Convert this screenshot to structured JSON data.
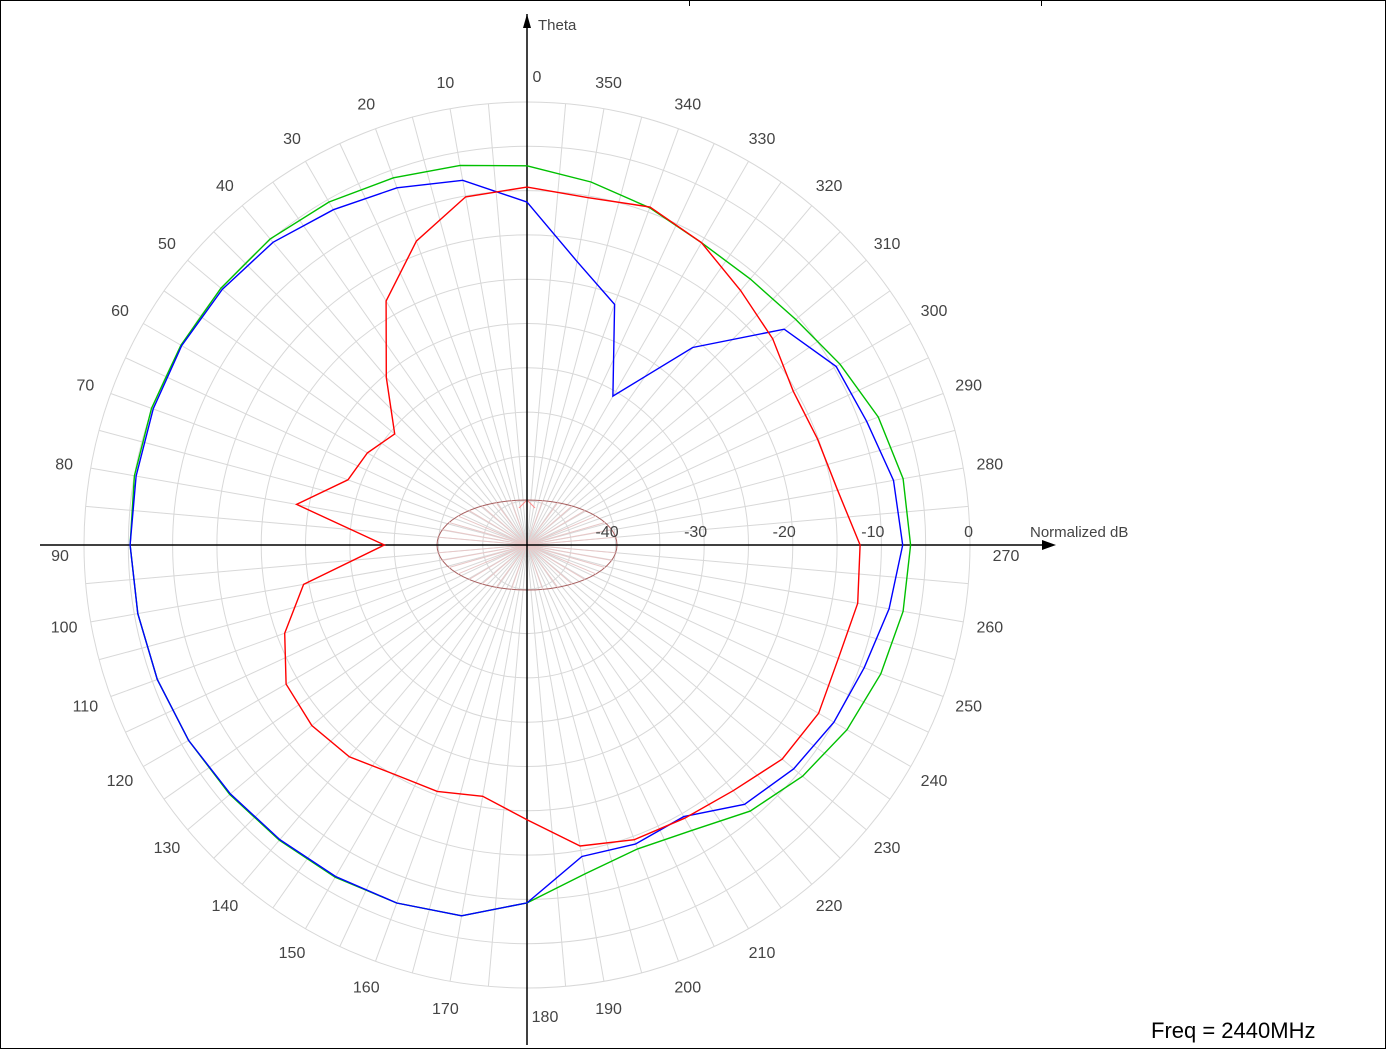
{
  "chart_data": {
    "type": "polar-line",
    "radial_axis": {
      "label": "Normalized dB",
      "range": [
        -50,
        0
      ],
      "ticks": [
        -40,
        -30,
        -20,
        -10,
        0
      ],
      "tick_labels": [
        "-40",
        "-30",
        "-20",
        "-10",
        "0"
      ],
      "rings": [
        -45,
        -40,
        -35,
        -30,
        -25,
        -20,
        -15,
        -10,
        -5,
        0
      ]
    },
    "angular_axis": {
      "label": "Theta",
      "direction": "counterclockwise",
      "zero_at": "top",
      "step_deg": 10,
      "tick_labels": [
        "0",
        "10",
        "20",
        "30",
        "40",
        "50",
        "60",
        "70",
        "80",
        "90",
        "100",
        "110",
        "120",
        "130",
        "140",
        "150",
        "160",
        "170",
        "180",
        "190",
        "200",
        "210",
        "220",
        "230",
        "240",
        "250",
        "260",
        "270",
        "280",
        "290",
        "300",
        "310",
        "320",
        "330",
        "340",
        "350"
      ]
    },
    "theta": [
      0,
      10,
      20,
      30,
      40,
      50,
      60,
      70,
      80,
      90,
      100,
      110,
      120,
      130,
      140,
      150,
      160,
      170,
      180,
      190,
      200,
      210,
      220,
      230,
      240,
      250,
      260,
      270,
      280,
      290,
      300,
      310,
      320,
      330,
      340,
      350
    ],
    "series": [
      {
        "color": "#00c000",
        "values": [
          -7.2,
          -6.5,
          -5.9,
          -5.3,
          -4.9,
          -4.9,
          -4.9,
          -4.9,
          -5.0,
          -5.2,
          -5.4,
          -5.6,
          -5.9,
          -6.2,
          -6.5,
          -6.7,
          -7.0,
          -7.5,
          -9.6,
          -12.3,
          -13.5,
          -12.8,
          -10.8,
          -9.4,
          -8.3,
          -7.5,
          -6.9,
          -6.7,
          -6.9,
          -7.8,
          -9.2,
          -10.4,
          -10.8,
          -10.6,
          -9.5,
          -8.4
        ]
      },
      {
        "color": "#0000ff",
        "values": [
          -11.3,
          -8.2,
          -7.1,
          -6.3,
          -5.4,
          -5.1,
          -5.0,
          -5.1,
          -5.2,
          -5.2,
          -5.4,
          -5.6,
          -5.9,
          -6.3,
          -6.6,
          -6.8,
          -7.0,
          -7.5,
          -9.6,
          -14.3,
          -14.1,
          -14.6,
          -11.8,
          -10.7,
          -10.0,
          -9.5,
          -8.5,
          -7.6,
          -8.0,
          -9.2,
          -9.7,
          -12.1,
          -20.9,
          -30.6,
          -21.1,
          -17.5
        ]
      },
      {
        "color": "#ff0000",
        "values": [
          -9.6,
          -10.1,
          -13.5,
          -18.2,
          -25.3,
          -30.5,
          -29.2,
          -28.5,
          -23.6,
          -33.9,
          -24.4,
          -20.9,
          -18.6,
          -18.3,
          -18.8,
          -20.1,
          -20.4,
          -21.2,
          -19.0,
          -15.5,
          -14.6,
          -14.4,
          -13.8,
          -12.4,
          -12.0,
          -12.6,
          -12.1,
          -12.4,
          -14.4,
          -15.1,
          -15.3,
          -13.8,
          -12.5,
          -10.6,
          -9.4,
          -10.2
        ]
      }
    ],
    "annotation": "Freq = 2440MHz"
  },
  "labels": {
    "theta_axis": "Theta",
    "radial_axis": "Normalized dB",
    "freq": "Freq = 2440MHz"
  }
}
